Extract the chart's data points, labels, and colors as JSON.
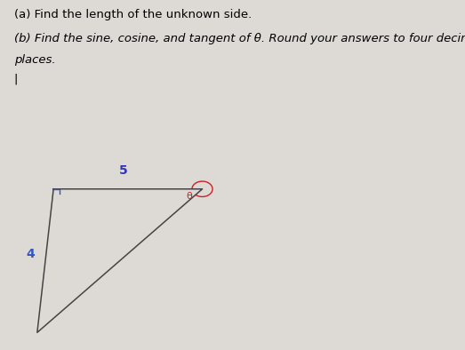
{
  "text_part_a": "(a) Find the length of the unknown side.",
  "text_part_b": "(b) Find the sine, cosine, and tangent of θ. Round your answers to four decimal",
  "text_part_b2": "places.",
  "text_cursor": "|",
  "label_5": "5",
  "label_4": "4",
  "label_theta": "θ",
  "label_5_color": "#3333bb",
  "label_4_color": "#3355cc",
  "label_theta_color": "#cc2222",
  "background_color": "#dddad6",
  "fig_width": 5.23,
  "fig_height": 3.94,
  "dpi": 100,
  "v0": [
    0.115,
    0.46
  ],
  "v1": [
    0.435,
    0.46
  ],
  "v2": [
    0.08,
    0.05
  ]
}
